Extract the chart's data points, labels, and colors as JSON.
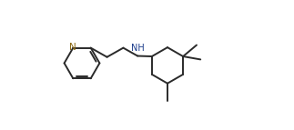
{
  "bg_color": "#ffffff",
  "bond_color": "#2a2a2a",
  "N_color": "#8B6914",
  "NH_color": "#1a3a8a",
  "line_width": 1.4,
  "dbo": 0.012,
  "figsize": [
    3.23,
    1.43
  ],
  "dpi": 100
}
